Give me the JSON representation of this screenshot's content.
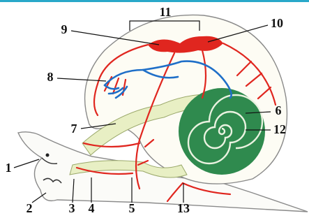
{
  "callouts": [
    "1",
    "2",
    "3",
    "4",
    "5",
    "6",
    "7",
    "8",
    "9",
    "10",
    "11",
    "12",
    "13"
  ]
}
